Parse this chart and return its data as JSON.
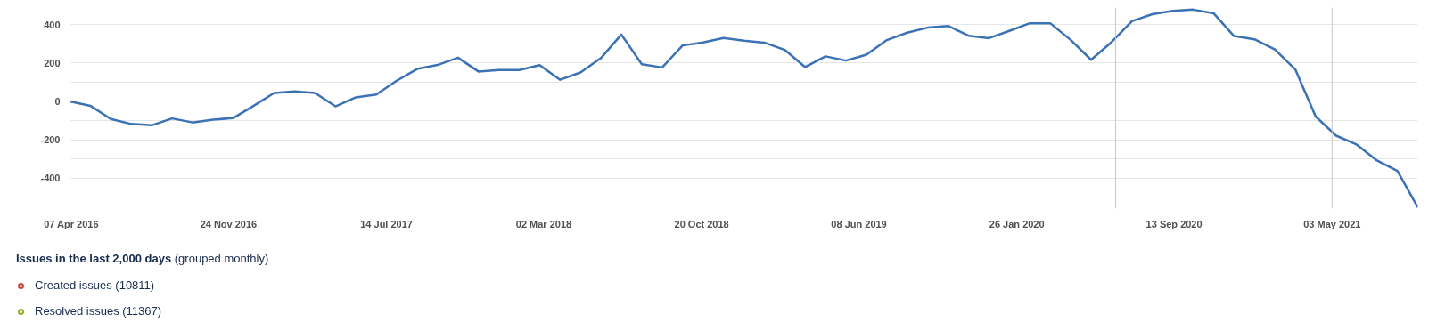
{
  "chart_data": {
    "type": "line",
    "title": "Issues in the last 2,000 days",
    "subtitle": "(grouped monthly)",
    "annotations": [
      "Created issues (10811)",
      "Resolved issues (11367)"
    ],
    "x": [
      "2016-04-05",
      "2016-05-05",
      "2016-06-04",
      "2016-07-04",
      "2016-08-03",
      "2016-09-02",
      "2016-10-02",
      "2016-11-01",
      "2016-12-01",
      "2016-12-31",
      "2017-01-30",
      "2017-03-01",
      "2017-03-31",
      "2017-04-30",
      "2017-05-30",
      "2017-06-29",
      "2017-07-29",
      "2017-08-28",
      "2017-09-27",
      "2017-10-27",
      "2017-11-26",
      "2017-12-26",
      "2018-01-25",
      "2018-02-24",
      "2018-03-26",
      "2018-04-25",
      "2018-05-25",
      "2018-06-24",
      "2018-07-24",
      "2018-08-23",
      "2018-09-22",
      "2018-10-22",
      "2018-11-21",
      "2018-12-21",
      "2019-01-20",
      "2019-02-19",
      "2019-03-21",
      "2019-04-20",
      "2019-05-20",
      "2019-06-19",
      "2019-07-19",
      "2019-08-18",
      "2019-09-17",
      "2019-10-17",
      "2019-11-16",
      "2019-12-16",
      "2020-01-15",
      "2020-02-14",
      "2020-03-15",
      "2020-04-14",
      "2020-05-14",
      "2020-06-13",
      "2020-07-13",
      "2020-08-12",
      "2020-09-11",
      "2020-10-11",
      "2020-11-10",
      "2020-12-10",
      "2021-01-09",
      "2021-02-08",
      "2021-03-10",
      "2021-04-09",
      "2021-05-09",
      "2021-06-08",
      "2021-07-08",
      "2021-08-07",
      "2021-09-06"
    ],
    "series": [
      {
        "color": "#3a72b5",
        "values": [
          0,
          -23,
          -92,
          -118,
          -125,
          -89,
          -110,
          -95,
          -87,
          -23,
          44,
          52,
          44,
          -26,
          21,
          36,
          108,
          169,
          190,
          228,
          156,
          164,
          164,
          189,
          113,
          151,
          226,
          349,
          194,
          177,
          292,
          308,
          331,
          317,
          307,
          269,
          179,
          235,
          213,
          244,
          320,
          359,
          385,
          394,
          343,
          330,
          368,
          408,
          408,
          321,
          217,
          309,
          419,
          455,
          473,
          479,
          460,
          341,
          324,
          271,
          167,
          -79,
          -179,
          -225,
          -309,
          -363,
          -554
        ]
      }
    ],
    "xlim": [
      "2016-04-05",
      "2021-09-06"
    ],
    "xticks": [
      {
        "value": "2016-04-07",
        "label": "07 Apr 2016"
      },
      {
        "value": "2016-11-24",
        "label": "24 Nov 2016"
      },
      {
        "value": "2017-07-14",
        "label": "14 Jul 2017"
      },
      {
        "value": "2018-03-02",
        "label": "02 Mar 2018"
      },
      {
        "value": "2018-10-20",
        "label": "20 Oct 2018"
      },
      {
        "value": "2019-06-08",
        "label": "08 Jun 2019"
      },
      {
        "value": "2020-01-26",
        "label": "26 Jan 2020"
      },
      {
        "value": "2020-09-13",
        "label": "13 Sep 2020"
      },
      {
        "value": "2021-05-03",
        "label": "03 May 2021"
      }
    ],
    "ylim": [
      -560,
      490
    ],
    "yticks": [
      {
        "value": -500,
        "label": null
      },
      -400,
      {
        "value": -300,
        "label": null
      },
      -200,
      {
        "value": -100,
        "label": null
      },
      0,
      {
        "value": 100,
        "label": null
      },
      200,
      {
        "value": 300,
        "label": null
      },
      400
    ],
    "grid": "y",
    "ref_lines": [
      {
        "axis": "x",
        "value": "2020-06-19",
        "label": null,
        "color": "#c8c8c8"
      },
      {
        "axis": "x",
        "value": "2021-05-03",
        "label": null,
        "color": "#c8c8c8"
      }
    ]
  }
}
